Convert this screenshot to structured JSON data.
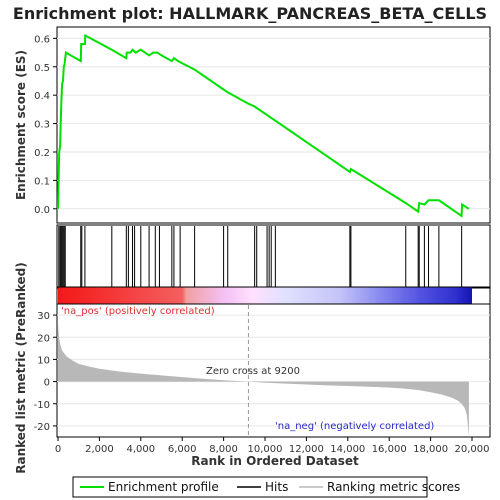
{
  "title": "Enrichment plot: HALLMARK_PANCREAS_BETA_CELLS",
  "colors": {
    "es_line": "#00e000",
    "hits": "#000000",
    "metric_fill": "#b8b8b8",
    "pos_label": "#e03030",
    "neg_label": "#2828c8",
    "zero_cross_line": "#999999"
  },
  "labels": {
    "pos": "'na_pos' (positively correlated)",
    "neg": "'na_neg' (negatively correlated)",
    "zero_cross": "Zero cross at 9200"
  },
  "legend": [
    {
      "label": "Enrichment profile",
      "icon": "green-line-icon"
    },
    {
      "label": "Hits",
      "icon": "black-line-icon"
    },
    {
      "label": "Ranking metric scores",
      "icon": "gray-line-icon"
    }
  ],
  "chart_data": [
    {
      "type": "line",
      "name": "enrichment-profile",
      "ylabel": "Enrichment score (ES)",
      "xlim": [
        0,
        20000
      ],
      "ylim": [
        -0.05,
        0.64
      ],
      "y_ticks": [
        "0.0",
        "0.1",
        "0.2",
        "0.3",
        "0.4",
        "0.5",
        "0.6"
      ],
      "y_tick_values": [
        0.0,
        0.1,
        0.2,
        0.3,
        0.4,
        0.5,
        0.6
      ],
      "grid": true,
      "x": [
        0,
        30,
        60,
        100,
        130,
        160,
        200,
        240,
        280,
        320,
        380,
        1100,
        1120,
        1300,
        1320,
        2600,
        3300,
        3320,
        3500,
        3600,
        3750,
        4000,
        4400,
        4600,
        4800,
        5000,
        5500,
        5600,
        5800,
        6600,
        8000,
        8200,
        9200,
        9500,
        9600,
        10100,
        10200,
        10300,
        10500,
        14100,
        14150,
        16800,
        17400,
        17450,
        17700,
        17900,
        18400,
        19500,
        19520,
        19850
      ],
      "y": [
        0.0,
        0.1,
        0.2,
        0.22,
        0.3,
        0.37,
        0.44,
        0.45,
        0.5,
        0.51,
        0.55,
        0.52,
        0.58,
        0.58,
        0.61,
        0.56,
        0.53,
        0.55,
        0.55,
        0.56,
        0.55,
        0.56,
        0.54,
        0.55,
        0.55,
        0.54,
        0.52,
        0.53,
        0.52,
        0.49,
        0.42,
        0.41,
        0.37,
        0.36,
        0.355,
        0.33,
        0.325,
        0.32,
        0.31,
        0.13,
        0.14,
        0.02,
        -0.01,
        0.02,
        0.015,
        0.03,
        0.03,
        -0.025,
        0.015,
        0.0
      ]
    },
    {
      "type": "scatter",
      "name": "hits",
      "x": [
        40,
        100,
        150,
        200,
        250,
        300,
        350,
        1100,
        1150,
        1300,
        2600,
        3300,
        3400,
        3600,
        3700,
        4000,
        4400,
        4700,
        4900,
        5500,
        5600,
        5900,
        6600,
        8000,
        8200,
        9500,
        9600,
        10100,
        10200,
        10300,
        10500,
        14100,
        14150,
        16800,
        17400,
        17450,
        17700,
        17900,
        18400,
        19500
      ]
    },
    {
      "type": "area",
      "name": "ranking-metric",
      "xlabel": "Rank in Ordered Dataset",
      "ylabel": "Ranked list metric (PreRanked)",
      "xlim": [
        0,
        20000
      ],
      "ylim": [
        -25,
        35
      ],
      "y_ticks": [
        "-20",
        "-10",
        "0",
        "10",
        "20",
        "30"
      ],
      "y_tick_values": [
        -20,
        -10,
        0,
        10,
        20,
        30
      ],
      "x_ticks": [
        "0",
        "2,000",
        "4,000",
        "6,000",
        "8,000",
        "10,000",
        "12,000",
        "14,000",
        "16,000",
        "18,000",
        "20,000"
      ],
      "x_tick_values": [
        0,
        2000,
        4000,
        6000,
        8000,
        10000,
        12000,
        14000,
        16000,
        18000,
        20000
      ],
      "zero_cross": 9200,
      "x": [
        0,
        50,
        100,
        200,
        400,
        700,
        1000,
        1500,
        2000,
        3000,
        4000,
        5000,
        6000,
        7000,
        8000,
        9200,
        10000,
        11000,
        12000,
        13000,
        14000,
        15000,
        16000,
        16500,
        17000,
        17500,
        18000,
        18500,
        19000,
        19300,
        19500,
        19650,
        19750,
        19800,
        19850
      ],
      "y": [
        26,
        20,
        17,
        14,
        11.5,
        9.5,
        8,
        6.8,
        5.8,
        4.5,
        3.6,
        2.8,
        2.0,
        1.3,
        0.6,
        0,
        -0.5,
        -0.9,
        -1.3,
        -1.7,
        -2.0,
        -2.3,
        -2.7,
        -3.0,
        -3.4,
        -4.0,
        -4.8,
        -5.8,
        -7.2,
        -8.5,
        -10,
        -12,
        -15,
        -20,
        -25
      ]
    }
  ]
}
